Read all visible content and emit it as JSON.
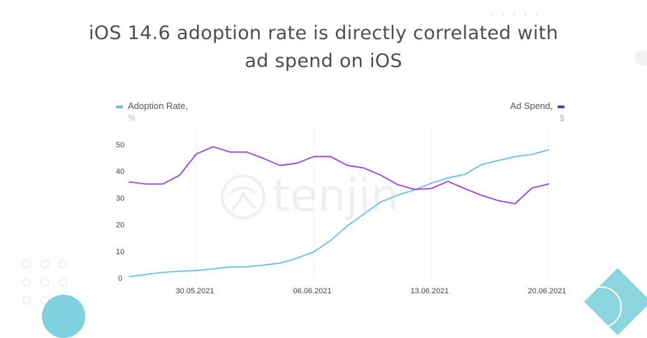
{
  "title_line1": "iOS 14.6 adoption rate is directly correlated with",
  "title_line2": "ad spend on iOS",
  "watermark": "tenjin",
  "legend": {
    "left": {
      "label": "Adoption Rate,",
      "unit": "%",
      "color": "#65c1e8"
    },
    "right": {
      "label": "Ad Spend,",
      "unit": "$",
      "color": "#5b3fc4"
    }
  },
  "chart_data": {
    "type": "line",
    "title": "iOS 14.6 adoption rate is directly correlated with ad spend on iOS",
    "xlabel": "",
    "ylabel": "",
    "x_tick_labels": [
      "30.05.2021",
      "06.06.2021",
      "13.06.2021",
      "20.06.2021"
    ],
    "y_ticks": [
      0,
      10,
      20,
      30,
      40,
      50
    ],
    "ylim": [
      0,
      50
    ],
    "grid": "vertical lines at x ticks",
    "legend_position": "top",
    "series": [
      {
        "name": "Adoption Rate",
        "unit": "%",
        "color": "#65c1e8",
        "x": [
          "26.05.2021",
          "27.05.2021",
          "28.05.2021",
          "29.05.2021",
          "30.05.2021",
          "31.05.2021",
          "01.06.2021",
          "02.06.2021",
          "03.06.2021",
          "04.06.2021",
          "05.06.2021",
          "06.06.2021",
          "07.06.2021",
          "08.06.2021",
          "09.06.2021",
          "10.06.2021",
          "11.06.2021",
          "12.06.2021",
          "13.06.2021",
          "14.06.2021",
          "15.06.2021",
          "16.06.2021",
          "17.06.2021",
          "18.06.2021",
          "19.06.2021",
          "20.06.2021"
        ],
        "values": [
          0.5,
          1.3,
          2.1,
          2.5,
          2.8,
          3.4,
          4.1,
          4.2,
          4.8,
          5.6,
          7.4,
          9.8,
          14.0,
          19.5,
          24.0,
          28.5,
          31.0,
          33.0,
          35.5,
          37.5,
          38.8,
          42.5,
          44.0,
          45.5,
          46.3,
          48.0
        ]
      },
      {
        "name": "Ad Spend",
        "unit": "$",
        "color": "#a23fe3",
        "x": [
          "26.05.2021",
          "27.05.2021",
          "28.05.2021",
          "29.05.2021",
          "30.05.2021",
          "31.05.2021",
          "01.06.2021",
          "02.06.2021",
          "03.06.2021",
          "04.06.2021",
          "05.06.2021",
          "06.06.2021",
          "07.06.2021",
          "08.06.2021",
          "09.06.2021",
          "10.06.2021",
          "11.06.2021",
          "12.06.2021",
          "13.06.2021",
          "14.06.2021",
          "15.06.2021",
          "16.06.2021",
          "17.06.2021",
          "18.06.2021",
          "19.06.2021",
          "20.06.2021"
        ],
        "values": [
          36.0,
          35.2,
          35.2,
          38.5,
          46.5,
          49.2,
          47.2,
          47.2,
          44.8,
          42.2,
          43.0,
          45.5,
          45.5,
          42.2,
          41.2,
          38.5,
          35.0,
          33.2,
          33.5,
          36.2,
          33.5,
          31.0,
          29.0,
          27.8,
          33.7,
          35.2
        ]
      }
    ]
  }
}
